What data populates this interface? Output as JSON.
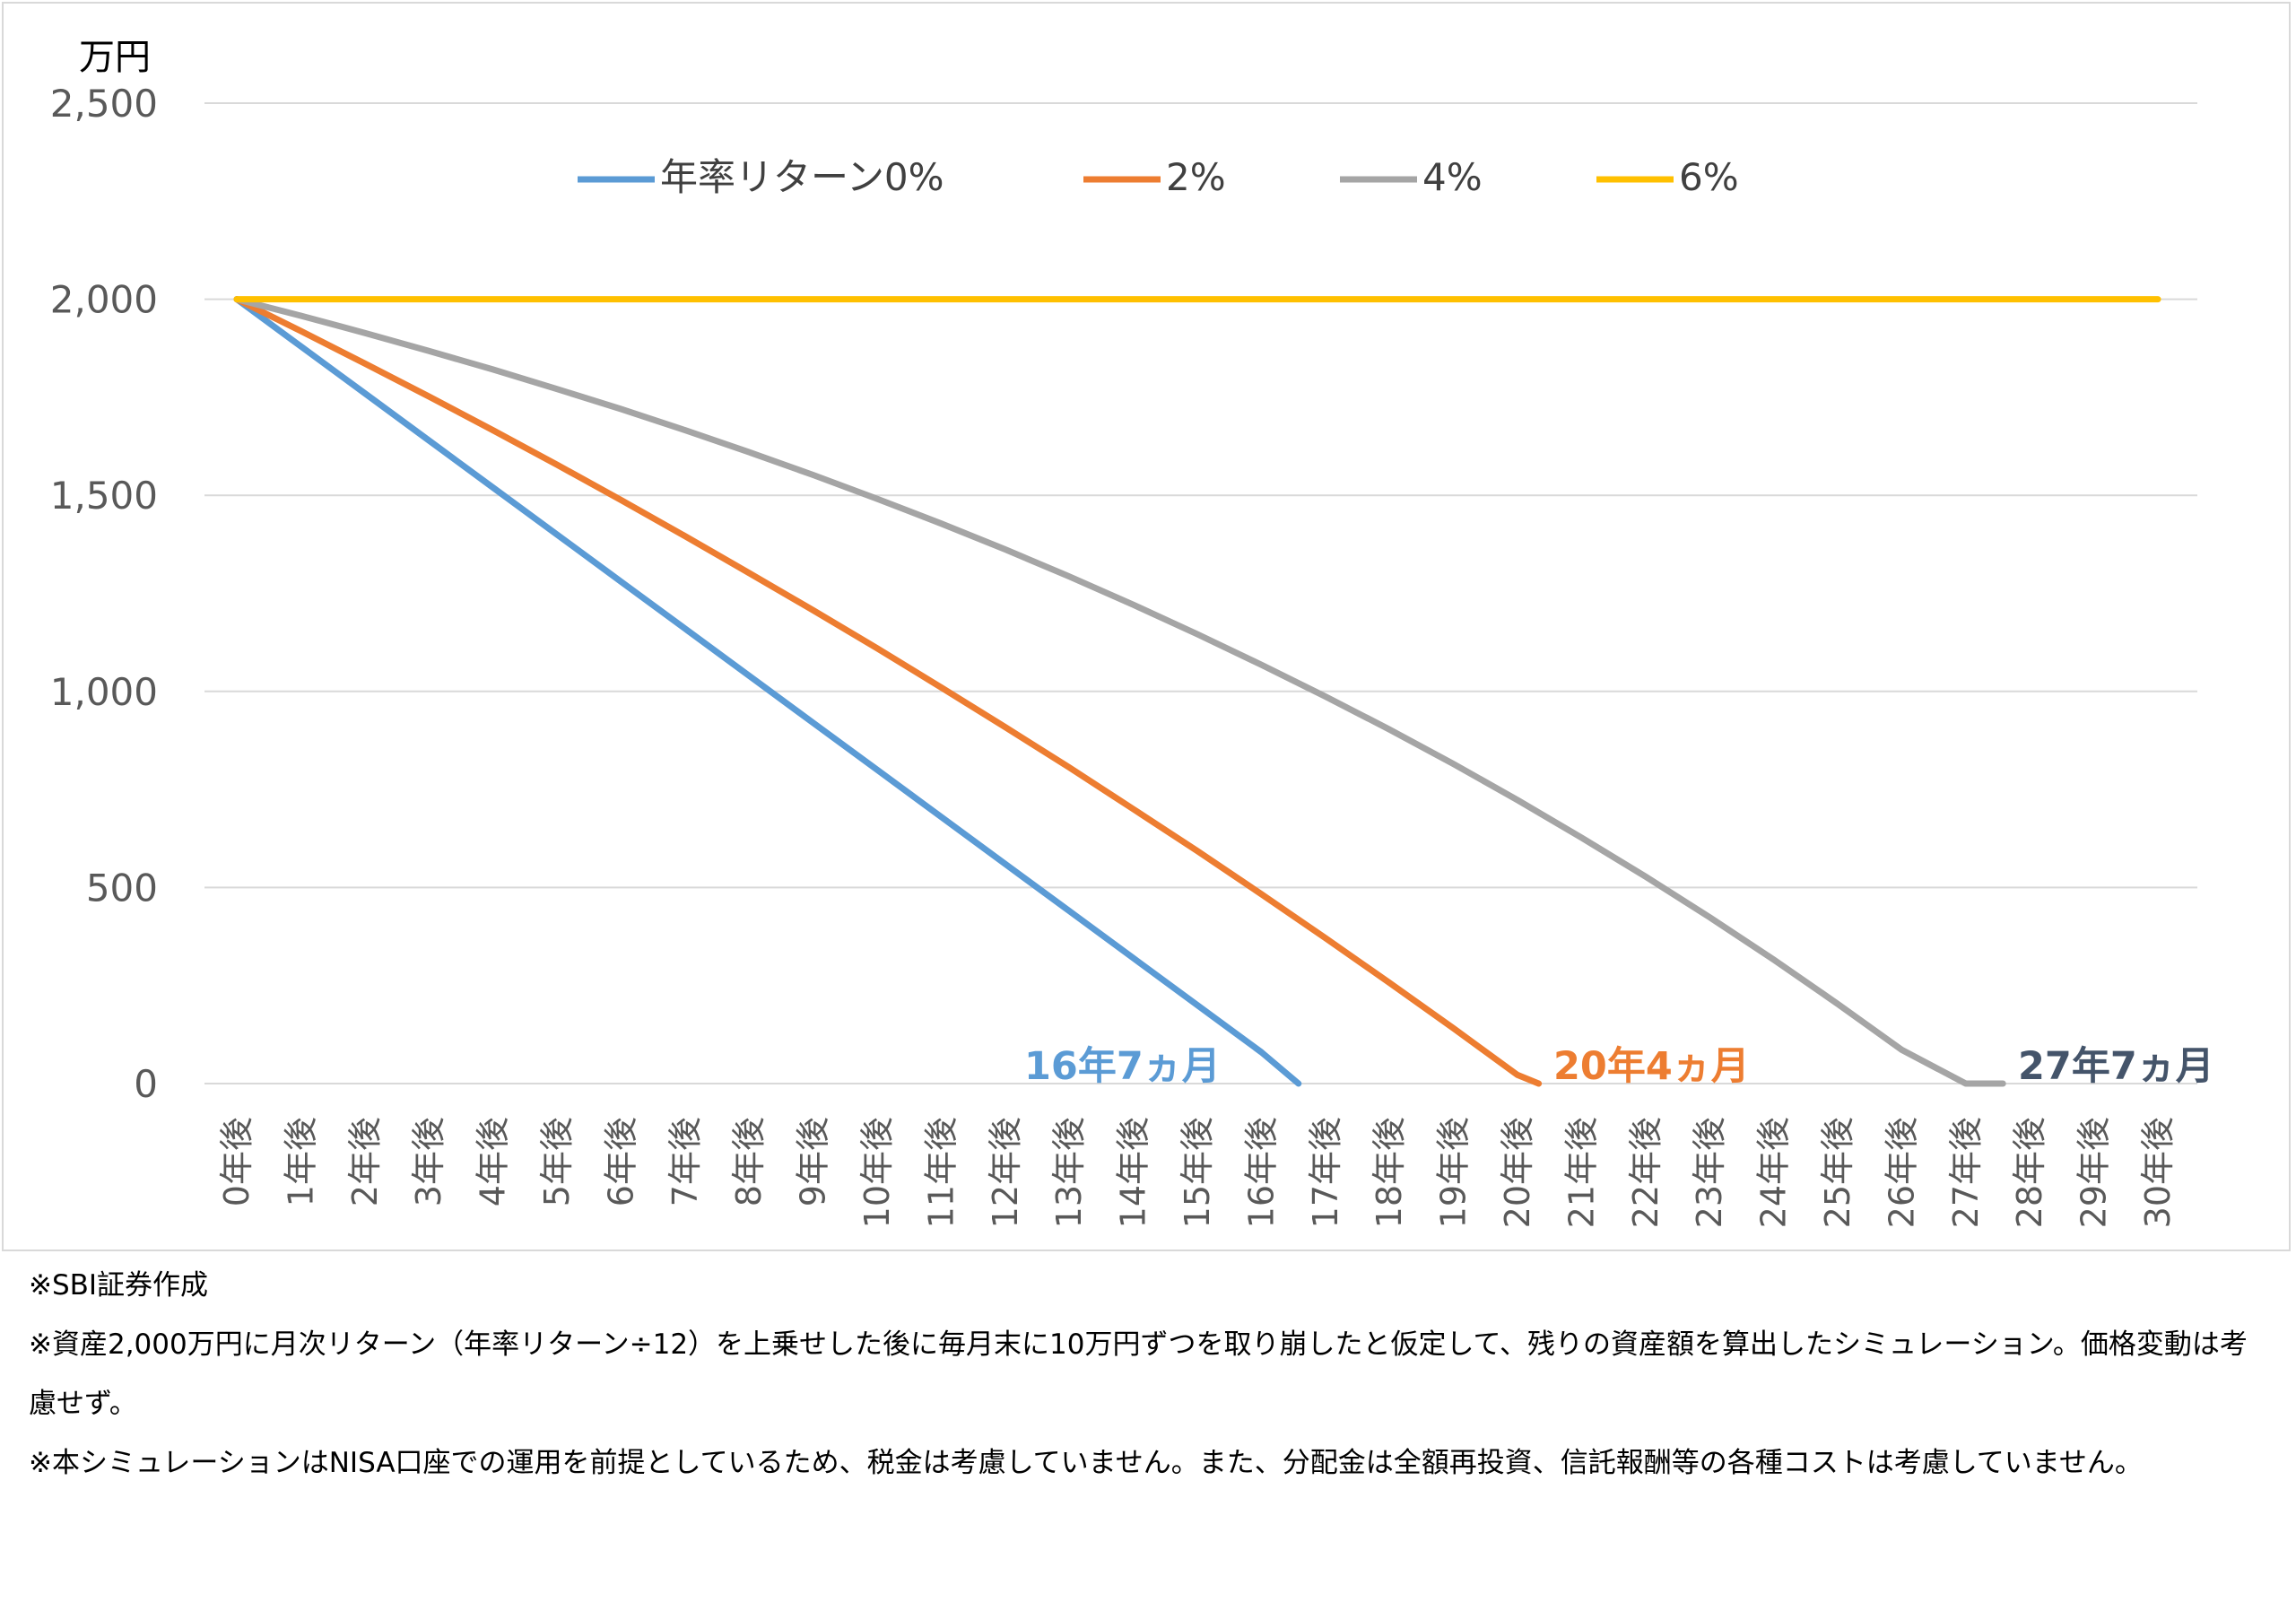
{
  "chart_data": {
    "type": "line",
    "yunit": "万円",
    "ylim": [
      0,
      2500
    ],
    "yticks": [
      0,
      500,
      1000,
      1500,
      2000,
      2500
    ],
    "ytick_labels": [
      "0",
      "500",
      "1,000",
      "1,500",
      "2,000",
      "2,500"
    ],
    "xlim": [
      0,
      30
    ],
    "categories": [
      "0年後",
      "1年後",
      "2年後",
      "3年後",
      "4年後",
      "5年後",
      "6年後",
      "7年後",
      "8年後",
      "9年後",
      "10年後",
      "11年後",
      "12年後",
      "13年後",
      "14年後",
      "15年後",
      "16年後",
      "17年後",
      "18年後",
      "19年後",
      "20年後",
      "21年後",
      "22年後",
      "23年後",
      "24年後",
      "25年後",
      "26年後",
      "27年後",
      "28年後",
      "29年後",
      "30年後"
    ],
    "grid": true,
    "legend_position": "top",
    "series": [
      {
        "name": "年率リターン0%",
        "color": "#5b9bd5",
        "x": [
          0,
          1,
          2,
          3,
          4,
          5,
          6,
          7,
          8,
          9,
          10,
          11,
          12,
          13,
          14,
          15,
          16,
          16.58
        ],
        "y": [
          2000,
          1880,
          1760,
          1640,
          1520,
          1400,
          1280,
          1160,
          1040,
          920,
          800,
          680,
          560,
          440,
          320,
          200,
          80,
          0
        ]
      },
      {
        "name": "2%",
        "color": "#ed7d31",
        "x": [
          0,
          1,
          2,
          3,
          4,
          5,
          6,
          7,
          8,
          9,
          10,
          11,
          12,
          13,
          14,
          15,
          16,
          17,
          18,
          19,
          20,
          20.33
        ],
        "y": [
          2000,
          1919,
          1836,
          1752,
          1666,
          1578,
          1488,
          1396,
          1302,
          1207,
          1110,
          1010,
          909,
          806,
          700,
          593,
          483,
          371,
          257,
          141,
          22,
          0
        ]
      },
      {
        "name": "4%",
        "color": "#a5a5a5",
        "x": [
          0,
          1,
          2,
          3,
          4,
          5,
          6,
          7,
          8,
          9,
          10,
          11,
          12,
          13,
          14,
          15,
          16,
          17,
          18,
          19,
          20,
          21,
          22,
          23,
          24,
          25,
          26,
          27,
          27.58
        ],
        "y": [
          2000,
          1958,
          1914,
          1868,
          1821,
          1771,
          1720,
          1666,
          1610,
          1552,
          1491,
          1428,
          1362,
          1293,
          1221,
          1146,
          1068,
          987,
          903,
          815,
          723,
          627,
          528,
          424,
          316,
          203,
          86,
          0,
          0
        ]
      },
      {
        "name": "6%",
        "color": "#ffc000",
        "x": [
          0,
          30
        ],
        "y": [
          2000,
          2000
        ]
      }
    ],
    "annotations": [
      {
        "text": "16年7ヵ月",
        "x": 16.58,
        "y": 0,
        "color": "#5b9bd5"
      },
      {
        "text": "20年4ヵ月",
        "x": 20.33,
        "y": 0,
        "color": "#ed7d31"
      },
      {
        "text": "27年7ヵ月",
        "x": 27.58,
        "y": 0,
        "color": "#44546a"
      }
    ]
  },
  "notes": [
    "※SBI証券作成",
    "※資産2,000万円に月次リターン（年率リターン÷12）を上乗せした後に毎月末に10万円ずつを取り崩したと仮定して、残りの資産額を算出したシミュレーション。価格変動は考慮せず。",
    "※本シミュレーションはNISA口座での運用を前提としているため、税金は考慮していません。また、分配金は全額再投資、信託報酬等の各種コストは考慮していません。"
  ]
}
